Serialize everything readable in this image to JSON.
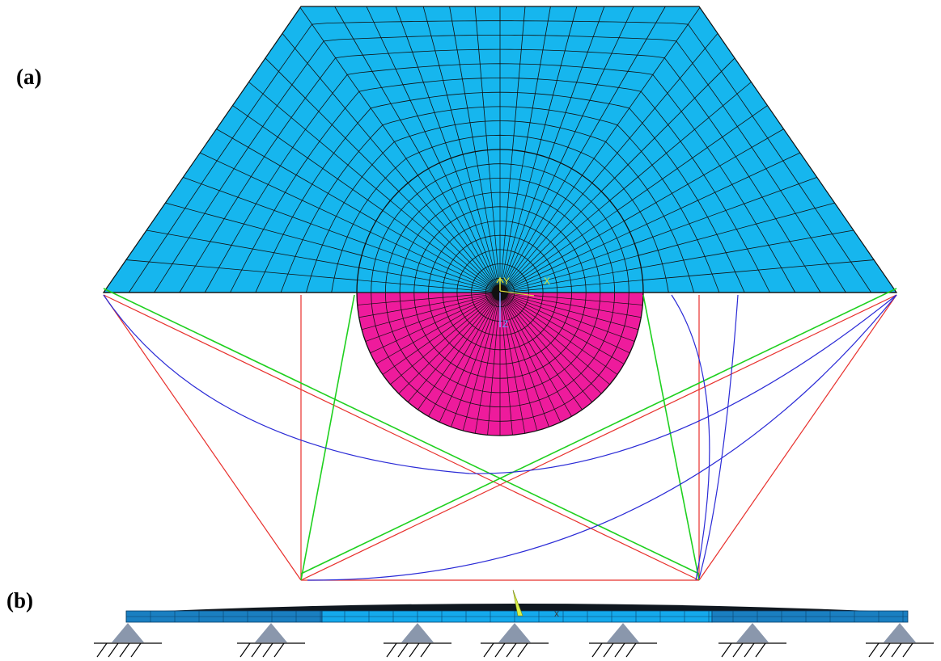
{
  "panel_a": {
    "label": "(a)",
    "axis_triad": {
      "y": "Y",
      "x": "X",
      "z": "Z"
    }
  },
  "panel_b": {
    "label": "(b)",
    "axis_marker": "x",
    "support_count": 7
  },
  "colors": {
    "fixed_mesh": "#16b6ee",
    "rotating_half_disc": "#ee1b9c",
    "mesh_lines": "#111111",
    "cable_red": "#e8302c",
    "cable_green": "#1fd01f",
    "cable_blue": "#2a2ad6",
    "beam_end": "#1a7fc1",
    "beam_mid": "#14a9ec",
    "support": "#8a97ac"
  }
}
